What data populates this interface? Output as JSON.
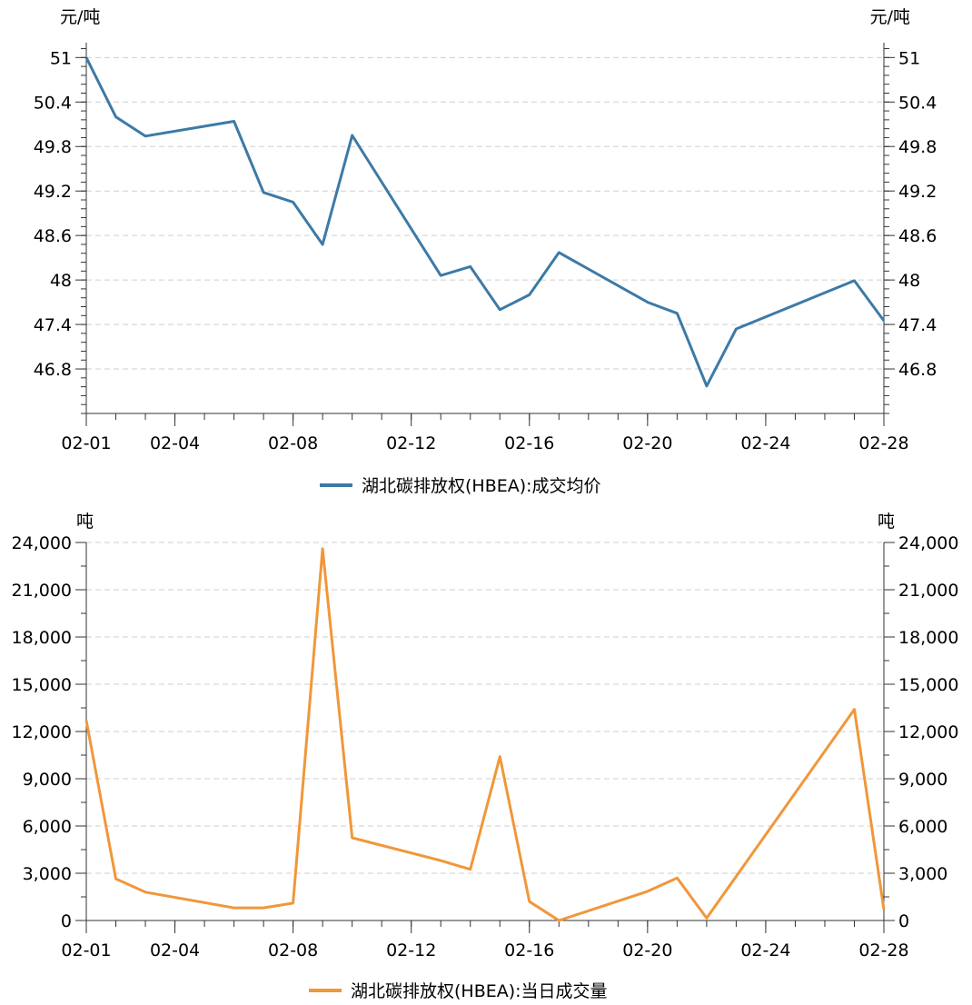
{
  "chart_data": [
    {
      "type": "line",
      "unit_left": "元/吨",
      "unit_right": "元/吨",
      "series": [
        {
          "name": "湖北碳排放权(HBEA):成交均价",
          "color": "#3d7aa6",
          "x": [
            "02-01",
            "02-02",
            "02-03",
            "02-06",
            "02-07",
            "02-08",
            "02-09",
            "02-10",
            "02-13",
            "02-14",
            "02-15",
            "02-16",
            "02-17",
            "02-20",
            "02-21",
            "02-22",
            "02-23",
            "02-27",
            "02-28"
          ],
          "values": [
            51.0,
            50.2,
            49.94,
            50.14,
            49.18,
            49.05,
            48.48,
            49.95,
            48.06,
            48.18,
            47.6,
            47.8,
            48.37,
            47.7,
            47.55,
            46.57,
            47.34,
            47.99,
            47.45
          ]
        }
      ],
      "x_ticks": [
        "02-01",
        "02-04",
        "02-08",
        "02-12",
        "02-16",
        "02-20",
        "02-24",
        "02-28"
      ],
      "y_ticks": [
        "51",
        "50.4",
        "49.8",
        "49.2",
        "48.6",
        "48",
        "47.4",
        "46.8"
      ],
      "ylim": [
        46.2,
        51.2
      ],
      "grid": true,
      "legend": "bottom-center"
    },
    {
      "type": "line",
      "unit_left": "吨",
      "unit_right": "吨",
      "series": [
        {
          "name": "湖北碳排放权(HBEA):当日成交量",
          "color": "#f0973a",
          "x": [
            "02-01",
            "02-02",
            "02-03",
            "02-06",
            "02-07",
            "02-08",
            "02-09",
            "02-10",
            "02-13",
            "02-14",
            "02-15",
            "02-16",
            "02-17",
            "02-20",
            "02-21",
            "02-22",
            "02-27",
            "02-28"
          ],
          "values": [
            12700,
            2650,
            1800,
            800,
            800,
            1100,
            23600,
            5250,
            3800,
            3250,
            10400,
            1200,
            0,
            1850,
            2700,
            150,
            13400,
            700
          ]
        }
      ],
      "x_ticks": [
        "02-01",
        "02-04",
        "02-08",
        "02-12",
        "02-16",
        "02-20",
        "02-24",
        "02-28"
      ],
      "y_ticks": [
        "0",
        "3,000",
        "6,000",
        "9,000",
        "12,000",
        "15,000",
        "18,000",
        "21,000",
        "24,000"
      ],
      "ylim": [
        0,
        24000
      ],
      "grid": true,
      "legend": "bottom-center"
    }
  ]
}
